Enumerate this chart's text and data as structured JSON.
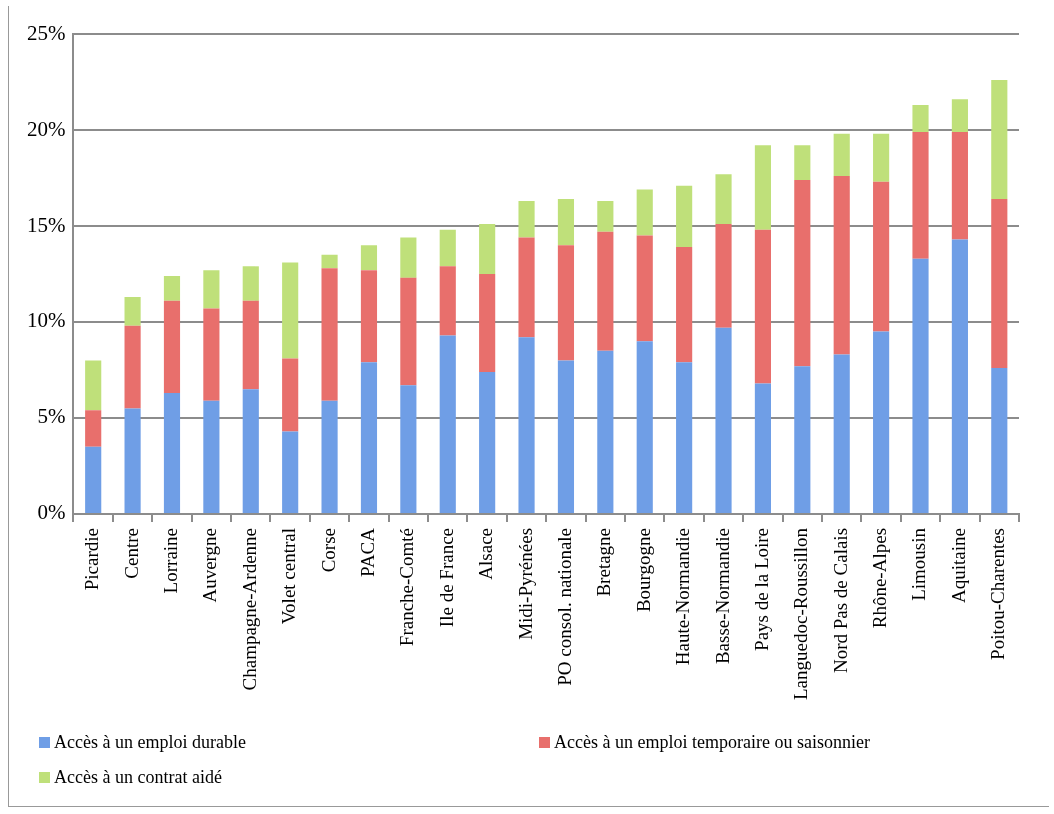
{
  "chart_data": {
    "type": "bar",
    "stacked": true,
    "categories": [
      "Picardie",
      "Centre",
      "Lorraine",
      "Auvergne",
      "Champagne-Ardenne",
      "Volet central",
      "Corse",
      "PACA",
      "Franche-Comté",
      "Ile de France",
      "Alsace",
      "Midi-Pyrénées",
      "PO consol. nationale",
      "Bretagne",
      "Bourgogne",
      "Haute-Normandie",
      "Basse-Normandie",
      "Pays de la Loire",
      "Languedoc-Roussillon",
      "Nord Pas de Calais",
      "Rhône-Alpes",
      "Limousin",
      "Aquitaine",
      "Poitou-Charentes"
    ],
    "series": [
      {
        "name": "Accès à un emploi durable",
        "color": "#6f9ee6",
        "values": [
          3.5,
          5.5,
          6.3,
          5.9,
          6.5,
          4.3,
          5.9,
          7.9,
          6.7,
          9.3,
          7.4,
          9.2,
          8.0,
          8.5,
          9.0,
          7.9,
          9.7,
          6.8,
          7.7,
          8.3,
          9.5,
          13.3,
          14.3,
          7.6
        ]
      },
      {
        "name": "Accès à un emploi temporaire ou saisonnier",
        "color": "#e86f6c",
        "values": [
          1.9,
          4.3,
          4.8,
          4.8,
          4.6,
          3.8,
          6.9,
          4.8,
          5.6,
          3.6,
          5.1,
          5.2,
          6.0,
          6.2,
          5.5,
          6.0,
          5.4,
          8.0,
          9.7,
          9.3,
          7.8,
          6.6,
          5.6,
          8.8
        ]
      },
      {
        "name": "Accès à un contrat aidé",
        "color": "#bfe07a",
        "values": [
          2.6,
          1.5,
          1.3,
          2.0,
          1.8,
          5.0,
          0.7,
          1.3,
          2.1,
          1.9,
          2.6,
          1.9,
          2.4,
          1.6,
          2.4,
          3.2,
          2.6,
          4.4,
          1.8,
          2.2,
          2.5,
          1.4,
          1.7,
          6.2
        ]
      }
    ],
    "ylim": [
      0,
      25
    ],
    "yticks": [
      {
        "value": 0,
        "label": "0%"
      },
      {
        "value": 5,
        "label": "5%"
      },
      {
        "value": 10,
        "label": "10%"
      },
      {
        "value": 15,
        "label": "15%"
      },
      {
        "value": 20,
        "label": "20%"
      },
      {
        "value": 25,
        "label": "25%"
      }
    ],
    "grid": "y",
    "legend": "bottom"
  }
}
